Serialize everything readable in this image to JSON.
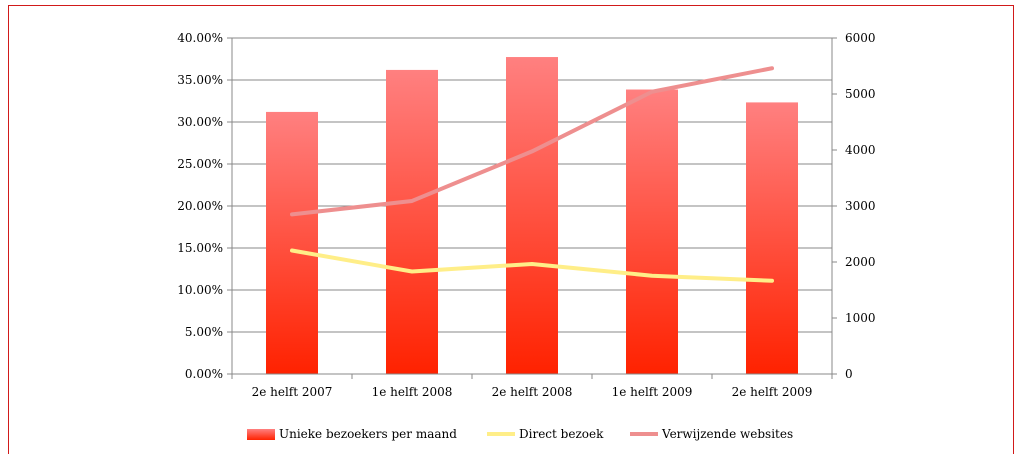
{
  "chart_data": {
    "type": "bar",
    "categories": [
      "2e helft 2007",
      "1e helft 2008",
      "2e helft 2008",
      "1e helft 2009",
      "2e helft 2009"
    ],
    "left_axis": {
      "min": 0,
      "max": 0.4,
      "step": 0.05,
      "tick_labels": [
        "0.00%",
        "5.00%",
        "10.00%",
        "15.00%",
        "20.00%",
        "25.00%",
        "30.00%",
        "35.00%",
        "40.00%"
      ]
    },
    "right_axis": {
      "min": 0,
      "max": 6000,
      "step": 1000,
      "tick_labels": [
        "0",
        "1000",
        "2000",
        "3000",
        "4000",
        "5000",
        "6000"
      ]
    },
    "grid": true,
    "legend_position": "bottom",
    "series": [
      {
        "name": "Unieke bezoekers per maand",
        "type": "bar",
        "axis": "right",
        "values": [
          4680,
          5430,
          5660,
          5080,
          4850
        ],
        "color_top": "#ff8080",
        "color_bottom": "#ff2200"
      },
      {
        "name": "Direct bezoek",
        "type": "line",
        "axis": "left",
        "values": [
          0.147,
          0.122,
          0.131,
          0.117,
          0.111
        ],
        "color": "#ffee88"
      },
      {
        "name": "Verwijzende websites",
        "type": "line",
        "axis": "left",
        "values": [
          0.19,
          0.206,
          0.265,
          0.336,
          0.364
        ],
        "color": "#ee8f8f"
      }
    ]
  }
}
